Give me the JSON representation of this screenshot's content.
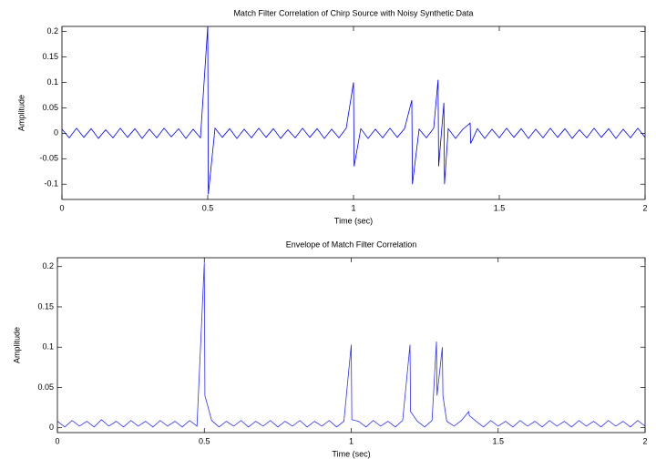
{
  "chart_data": [
    {
      "type": "line",
      "title": "Match Filter Correlation of Chirp Source with Noisy Synthetic Data",
      "xlabel": "Time (sec)",
      "ylabel": "Amplitude",
      "xlim": [
        0,
        2
      ],
      "ylim": [
        -0.13,
        0.21
      ],
      "xticks": [
        0,
        0.5,
        1,
        1.5,
        2
      ],
      "yticks": [
        -0.1,
        -0.05,
        0,
        0.05,
        0.1,
        0.15,
        0.2
      ],
      "series": [
        {
          "color": "#0000ff",
          "x": [
            0,
            0.025,
            0.05,
            0.075,
            0.1,
            0.125,
            0.15,
            0.175,
            0.2,
            0.225,
            0.25,
            0.275,
            0.3,
            0.325,
            0.35,
            0.375,
            0.4,
            0.425,
            0.45,
            0.475,
            0.5,
            0.502,
            0.525,
            0.55,
            0.575,
            0.6,
            0.625,
            0.65,
            0.675,
            0.7,
            0.725,
            0.75,
            0.775,
            0.8,
            0.825,
            0.85,
            0.875,
            0.9,
            0.925,
            0.95,
            0.975,
            1.0,
            1.002,
            1.025,
            1.05,
            1.075,
            1.1,
            1.125,
            1.15,
            1.175,
            1.2,
            1.202,
            1.225,
            1.25,
            1.275,
            1.29,
            1.292,
            1.31,
            1.312,
            1.325,
            1.35,
            1.375,
            1.4,
            1.402,
            1.425,
            1.45,
            1.475,
            1.5,
            1.525,
            1.55,
            1.575,
            1.6,
            1.625,
            1.65,
            1.675,
            1.7,
            1.725,
            1.75,
            1.775,
            1.8,
            1.825,
            1.85,
            1.875,
            1.9,
            1.925,
            1.95,
            1.975,
            2.0
          ],
          "values": [
            0.008,
            -0.009,
            0.01,
            -0.008,
            0.009,
            -0.01,
            0.007,
            -0.009,
            0.01,
            -0.008,
            0.009,
            -0.01,
            0.008,
            -0.009,
            0.01,
            -0.007,
            0.009,
            -0.01,
            0.008,
            -0.009,
            0.21,
            -0.12,
            0.01,
            -0.008,
            0.009,
            -0.01,
            0.008,
            -0.009,
            0.01,
            -0.008,
            0.009,
            -0.01,
            0.007,
            -0.009,
            0.01,
            -0.008,
            0.009,
            -0.01,
            0.008,
            -0.009,
            0.01,
            0.1,
            -0.065,
            0.009,
            -0.01,
            0.008,
            -0.009,
            0.01,
            -0.008,
            0.009,
            0.065,
            -0.1,
            0.008,
            -0.009,
            0.01,
            0.105,
            -0.065,
            0.06,
            -0.1,
            0.009,
            -0.01,
            0.008,
            0.02,
            -0.02,
            0.009,
            -0.01,
            0.008,
            -0.009,
            0.01,
            -0.008,
            0.009,
            -0.01,
            0.008,
            -0.009,
            0.01,
            -0.008,
            0.009,
            -0.01,
            0.007,
            -0.009,
            0.01,
            -0.008,
            0.009,
            -0.01,
            0.008,
            -0.009,
            0.01,
            -0.008
          ]
        }
      ]
    },
    {
      "type": "line",
      "title": "Envelope of Match Filter Correlation",
      "xlabel": "Time (sec)",
      "ylabel": "Amplitude",
      "xlim": [
        0,
        2
      ],
      "ylim": [
        -0.006,
        0.211
      ],
      "xticks": [
        0,
        0.5,
        1,
        1.5,
        2
      ],
      "yticks": [
        0,
        0.05,
        0.1,
        0.15,
        0.2
      ],
      "series": [
        {
          "color": "#3030ff",
          "x": [
            0,
            0.025,
            0.05,
            0.075,
            0.1,
            0.125,
            0.15,
            0.175,
            0.2,
            0.225,
            0.25,
            0.275,
            0.3,
            0.325,
            0.35,
            0.375,
            0.4,
            0.425,
            0.45,
            0.475,
            0.5,
            0.502,
            0.525,
            0.55,
            0.575,
            0.6,
            0.625,
            0.65,
            0.675,
            0.7,
            0.725,
            0.75,
            0.775,
            0.8,
            0.825,
            0.85,
            0.875,
            0.9,
            0.925,
            0.95,
            0.975,
            1.0,
            1.002,
            1.025,
            1.05,
            1.075,
            1.1,
            1.125,
            1.15,
            1.175,
            1.2,
            1.202,
            1.225,
            1.25,
            1.275,
            1.29,
            1.292,
            1.31,
            1.312,
            1.325,
            1.35,
            1.375,
            1.4,
            1.402,
            1.425,
            1.45,
            1.475,
            1.5,
            1.525,
            1.55,
            1.575,
            1.6,
            1.625,
            1.65,
            1.675,
            1.7,
            1.725,
            1.75,
            1.775,
            1.8,
            1.825,
            1.85,
            1.875,
            1.9,
            1.925,
            1.95,
            1.975,
            2.0
          ],
          "values": [
            0.008,
            0.001,
            0.009,
            0.002,
            0.008,
            0.001,
            0.01,
            0.002,
            0.008,
            0.001,
            0.009,
            0.002,
            0.008,
            0.001,
            0.009,
            0.002,
            0.008,
            0.001,
            0.009,
            0.002,
            0.205,
            0.04,
            0.009,
            0.001,
            0.008,
            0.002,
            0.009,
            0.001,
            0.008,
            0.002,
            0.009,
            0.001,
            0.008,
            0.002,
            0.009,
            0.001,
            0.008,
            0.002,
            0.009,
            0.001,
            0.008,
            0.103,
            0.01,
            0.008,
            0.001,
            0.009,
            0.002,
            0.008,
            0.001,
            0.009,
            0.103,
            0.02,
            0.008,
            0.001,
            0.009,
            0.107,
            0.04,
            0.1,
            0.04,
            0.008,
            0.002,
            0.009,
            0.02,
            0.015,
            0.008,
            0.001,
            0.009,
            0.002,
            0.008,
            0.001,
            0.009,
            0.002,
            0.008,
            0.001,
            0.009,
            0.002,
            0.008,
            0.001,
            0.009,
            0.002,
            0.008,
            0.001,
            0.009,
            0.002,
            0.008,
            0.001,
            0.009,
            0.002
          ]
        }
      ]
    }
  ]
}
